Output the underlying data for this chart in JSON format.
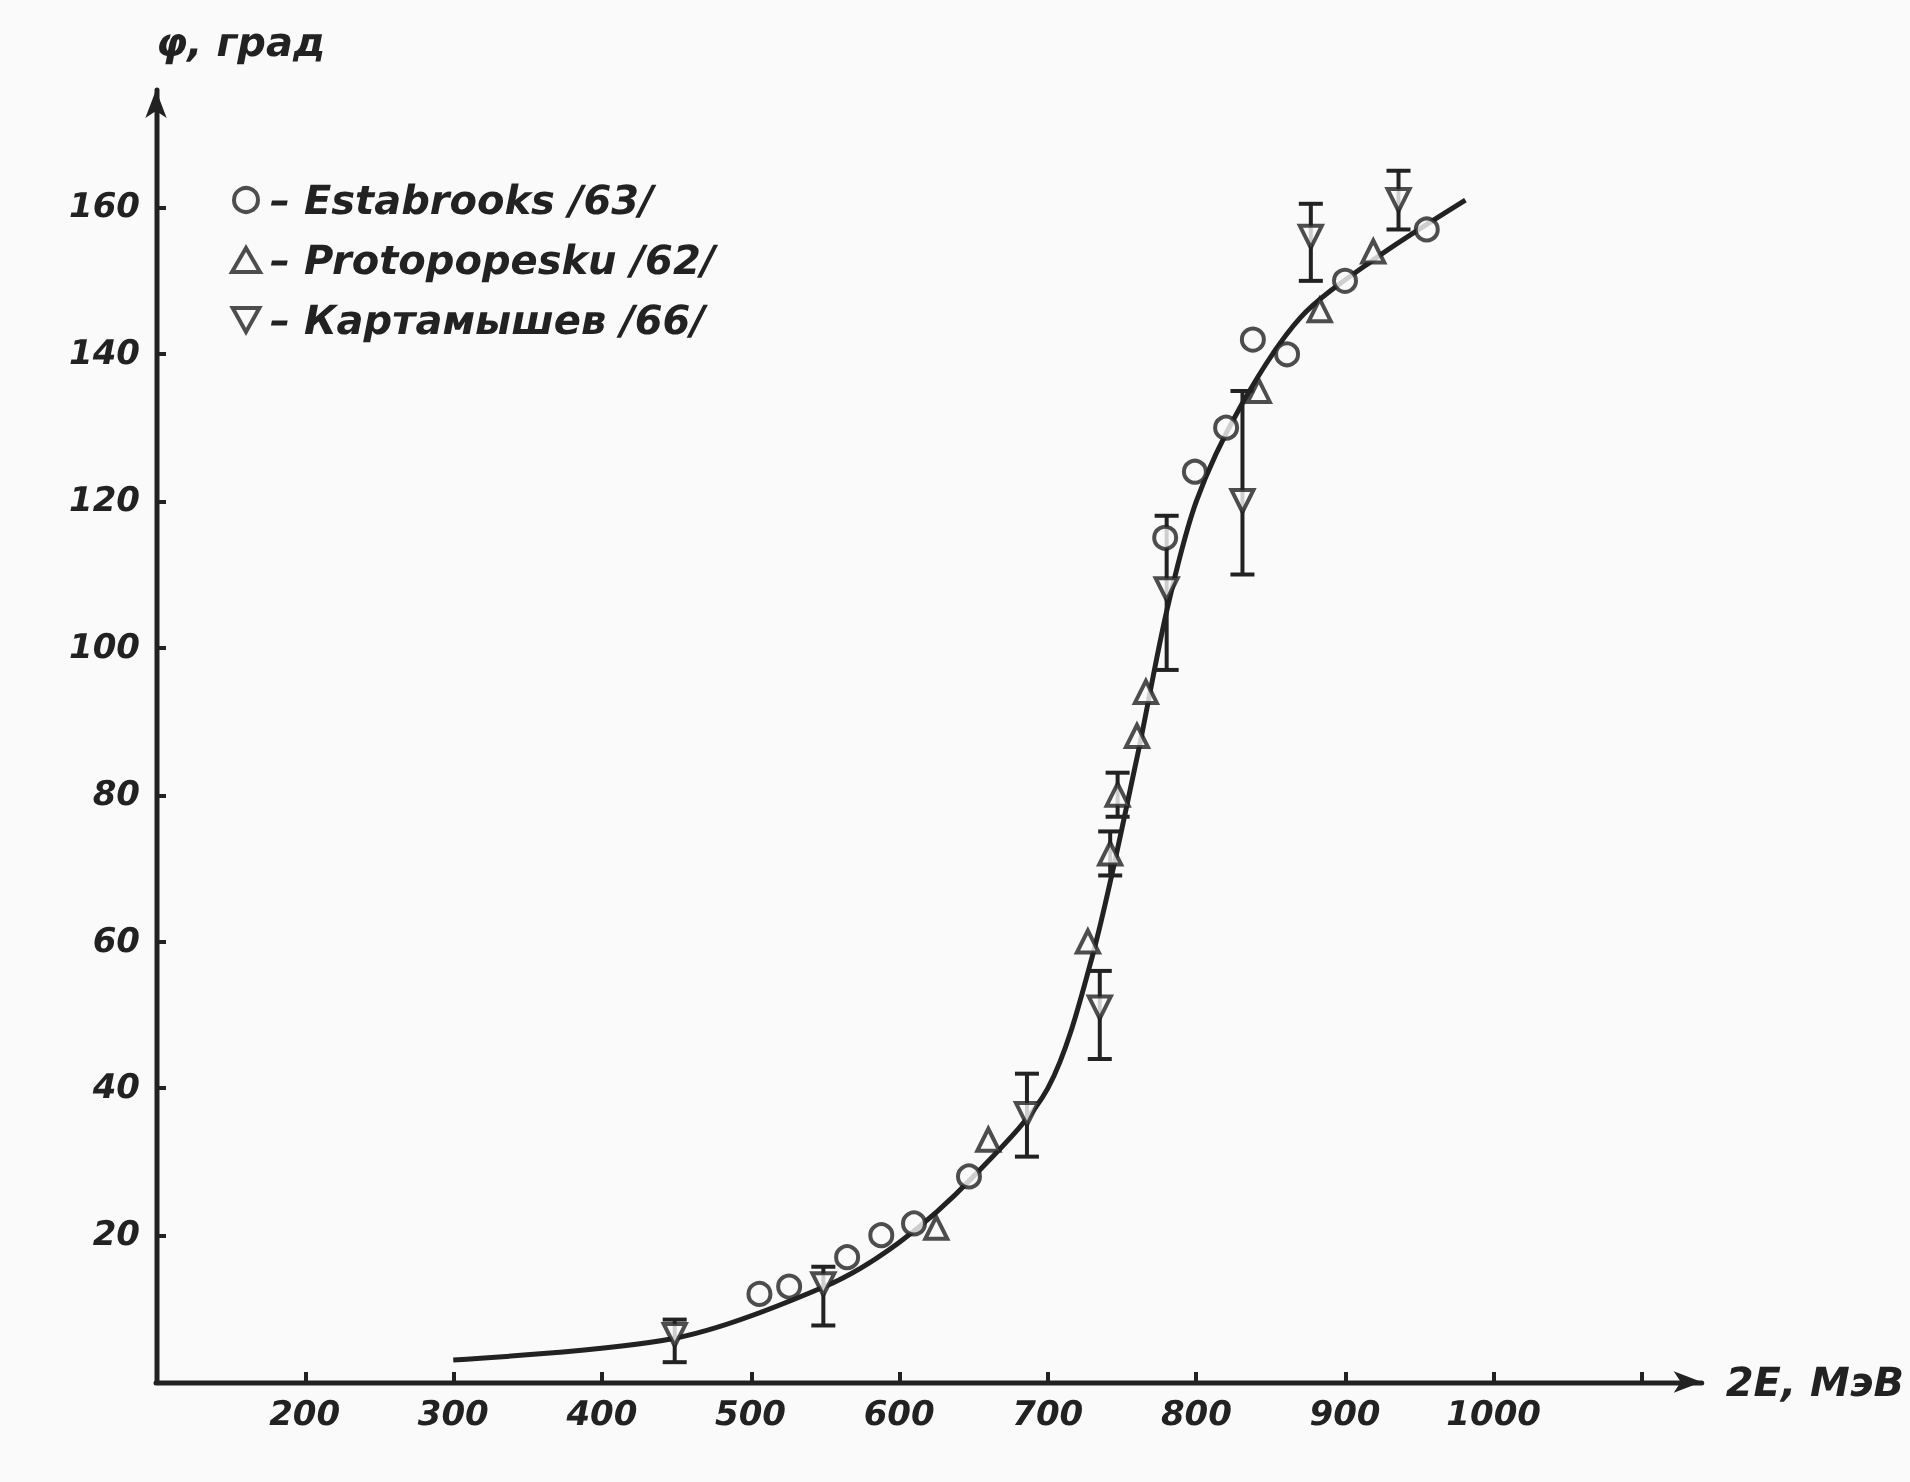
{
  "chart_data": {
    "type": "scatter",
    "xlabel": "2E, МэВ",
    "ylabel": "φ, град",
    "xlim": [
      100,
      1140
    ],
    "ylim": [
      0,
      176
    ],
    "xticks": [
      200,
      300,
      400,
      500,
      600,
      700,
      800,
      900,
      1000,
      {
        "value": 1100,
        "label": null
      }
    ],
    "yticks": [
      20,
      40,
      60,
      80,
      100,
      120,
      140,
      160
    ],
    "grid": false,
    "legend": "top left",
    "series": [
      {
        "name": "– Estabrooks /63/",
        "color": "#222222",
        "marker": "circle",
        "x": [
          506,
          526,
          565,
          588,
          610,
          647,
          779,
          799,
          820,
          838,
          861,
          900,
          955
        ],
        "values": [
          12,
          13,
          17,
          20,
          21.6,
          28,
          115,
          124,
          130,
          142,
          140,
          150,
          157
        ]
      },
      {
        "name": "– Protopopesku /62/",
        "color": "#222222",
        "marker": "triangle",
        "x": [
          625,
          660,
          727,
          742,
          747,
          760,
          766,
          842,
          883,
          919
        ],
        "values": [
          21,
          33,
          60,
          72,
          80,
          88,
          94,
          135,
          146,
          154
        ],
        "errors": [
          null,
          null,
          null,
          3,
          3,
          null,
          null,
          null,
          null,
          null
        ]
      },
      {
        "name": "– Картамышев /66/",
        "color": "#222222",
        "marker": "triangle-down",
        "x": [
          449,
          549,
          686,
          735,
          780,
          831,
          877,
          936
        ],
        "values": [
          6.4,
          13.3,
          36.5,
          51,
          108,
          120,
          156,
          161
        ],
        "errors": [
          [
            2.7,
            8.5
          ],
          [
            7.7,
            15.7
          ],
          [
            30.7,
            42
          ],
          [
            44,
            56
          ],
          [
            97,
            118
          ],
          [
            110,
            135
          ],
          [
            150,
            160.5
          ],
          [
            157,
            165
          ]
        ]
      },
      {
        "type": "line",
        "color": "#222222",
        "marker": "none",
        "x": [
          300,
          450,
          550,
          600,
          650,
          700,
          730,
          760,
          780,
          800,
          830,
          870,
          920,
          981
        ],
        "values": [
          3,
          6,
          13,
          19,
          28,
          40,
          58,
          85,
          105,
          120,
          133,
          145,
          153,
          161
        ]
      }
    ]
  }
}
